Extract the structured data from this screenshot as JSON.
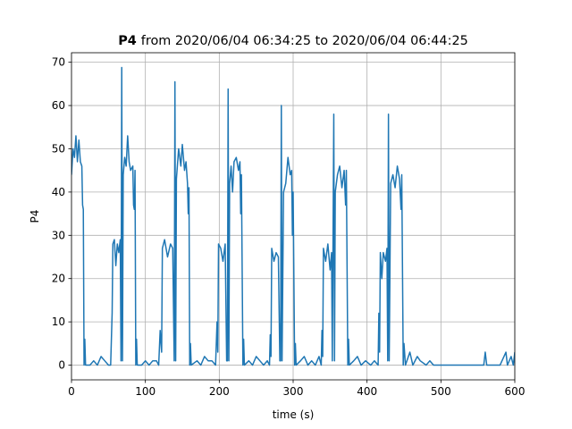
{
  "chart_data": {
    "type": "line",
    "title_bold": "P4",
    "title": "from 2020/06/04 06:34:25 to 2020/06/04 06:44:25",
    "x_label": "time (s)",
    "y_label": "P4",
    "xlim": [
      0,
      600
    ],
    "xticks": [
      0,
      100,
      200,
      300,
      400,
      500,
      600
    ],
    "ylim": [
      -3.4,
      72.2
    ],
    "yticks": [
      0,
      10,
      20,
      30,
      40,
      50,
      60,
      70
    ],
    "grid": true,
    "series": [
      {
        "name": "P4",
        "color": "#1f77b4",
        "x": [
          0,
          2,
          4,
          6,
          8,
          10,
          12,
          14,
          15,
          16,
          17,
          18,
          19,
          25,
          30,
          35,
          40,
          45,
          50,
          53,
          55,
          56,
          58,
          60,
          62,
          64,
          66,
          67,
          68,
          69,
          70,
          72,
          74,
          76,
          78,
          80,
          83,
          84,
          85,
          86,
          87,
          88,
          89,
          95,
          100,
          105,
          110,
          115,
          118,
          120,
          122,
          123,
          126,
          130,
          134,
          137,
          139,
          140,
          141,
          142,
          145,
          148,
          150,
          153,
          155,
          157,
          158,
          159,
          160,
          161,
          162,
          170,
          175,
          180,
          185,
          190,
          195,
          197,
          198,
          199,
          202,
          205,
          208,
          210,
          211,
          212,
          213,
          214,
          216,
          218,
          220,
          223,
          226,
          228,
          229,
          230,
          232,
          233,
          234,
          240,
          245,
          250,
          255,
          260,
          265,
          268,
          269,
          270,
          271,
          274,
          277,
          280,
          282,
          283,
          284,
          285,
          287,
          290,
          293,
          296,
          298,
          299,
          300,
          302,
          303,
          304,
          310,
          315,
          320,
          325,
          330,
          335,
          338,
          339,
          340,
          341,
          344,
          347,
          350,
          352,
          353,
          355,
          356,
          357,
          360,
          363,
          366,
          369,
          371,
          372,
          374,
          375,
          376,
          382,
          387,
          392,
          398,
          405,
          410,
          415,
          416,
          417,
          418,
          420,
          422,
          425,
          427,
          428,
          429,
          430,
          432,
          435,
          438,
          441,
          444,
          446,
          447,
          449,
          450,
          452,
          458,
          462,
          468,
          472,
          480,
          485,
          490,
          500,
          520,
          540,
          558,
          560,
          562,
          580,
          588,
          590,
          595,
          598,
          600
        ],
        "values": [
          44,
          50,
          48,
          53,
          47,
          52,
          47,
          46,
          37,
          36,
          0,
          6,
          0,
          0,
          1,
          0,
          2,
          1,
          0,
          0,
          12,
          28,
          29,
          23,
          28,
          26,
          29,
          1,
          68.8,
          1,
          44,
          48,
          46,
          53,
          47,
          45,
          46,
          37,
          36,
          45,
          0,
          6,
          0,
          0,
          1,
          0,
          1,
          1,
          0,
          8,
          3,
          27,
          29,
          25,
          28,
          27,
          1,
          65.5,
          1,
          43,
          50,
          46,
          51,
          45,
          47,
          42,
          35,
          41,
          0,
          5,
          0,
          1,
          0,
          2,
          1,
          1,
          0,
          10,
          3,
          28,
          27,
          24,
          28,
          1,
          1,
          63.8,
          1,
          42,
          46,
          40,
          47,
          48,
          45,
          47,
          35,
          44,
          0,
          6,
          0,
          1,
          0,
          2,
          1,
          0,
          1,
          0,
          7,
          2,
          27,
          24,
          26,
          25,
          1,
          1,
          60,
          1,
          40,
          42,
          48,
          44,
          45,
          30,
          40,
          0,
          5,
          0,
          1,
          2,
          0,
          1,
          0,
          2,
          0,
          8,
          2,
          27,
          24,
          28,
          22,
          26,
          1,
          58,
          1,
          40,
          44,
          46,
          41,
          45,
          37,
          45,
          0,
          6,
          0,
          1,
          2,
          0,
          1,
          0,
          1,
          0,
          12,
          3,
          26,
          20,
          26,
          24,
          27,
          1,
          58,
          1,
          42,
          44,
          41,
          46,
          43,
          36,
          44,
          0,
          5,
          0,
          3,
          0,
          2,
          1,
          0,
          1,
          0,
          0,
          0,
          0,
          0,
          3,
          0,
          0,
          3,
          0,
          2,
          0,
          3
        ]
      }
    ]
  }
}
